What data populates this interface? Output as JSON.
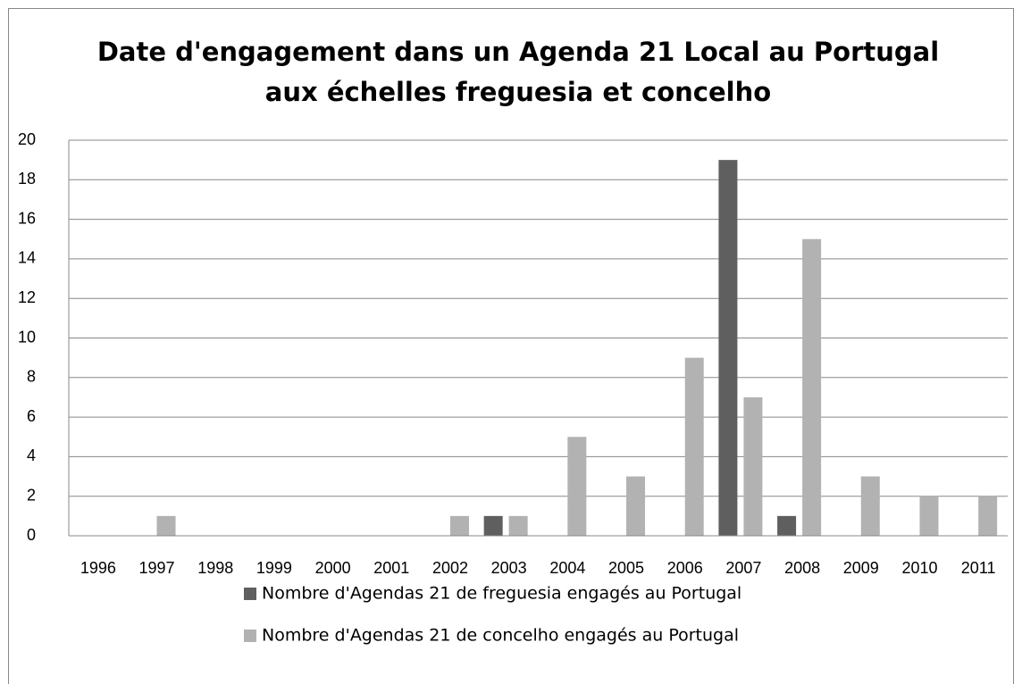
{
  "chart_data": {
    "type": "bar",
    "title": [
      "Date d'engagement dans un Agenda 21 Local au Portugal",
      "aux échelles freguesia et concelho"
    ],
    "categories": [
      "1996",
      "1997",
      "1998",
      "1999",
      "2000",
      "2001",
      "2002",
      "2003",
      "2004",
      "2005",
      "2006",
      "2007",
      "2008",
      "2009",
      "2010",
      "2011"
    ],
    "series": [
      {
        "name": "Nombre d'Agendas 21 de freguesia engagés au Portugal",
        "color": "#5f5f5f",
        "values": [
          0,
          0,
          0,
          0,
          0,
          0,
          0,
          1,
          0,
          0,
          0,
          19,
          1,
          0,
          0,
          0
        ]
      },
      {
        "name": "Nombre d'Agendas 21 de concelho engagés au Portugal",
        "color": "#b2b2b2",
        "values": [
          0,
          1,
          0,
          0,
          0,
          0,
          1,
          1,
          5,
          3,
          9,
          7,
          15,
          3,
          2,
          2
        ]
      }
    ],
    "ylim": [
      0,
      20
    ],
    "yticks": [
      0,
      2,
      4,
      6,
      8,
      10,
      12,
      14,
      16,
      18,
      20
    ],
    "grid": true
  }
}
